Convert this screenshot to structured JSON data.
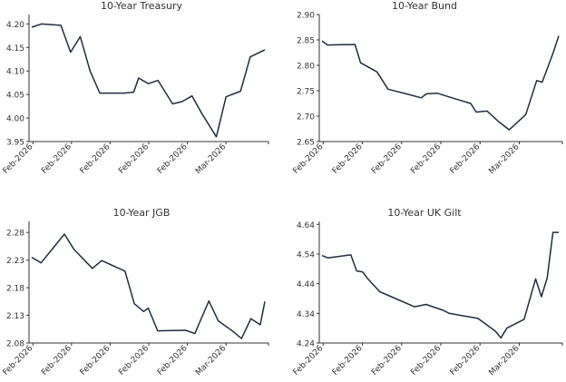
{
  "colors": {
    "line": "#1f2d3d",
    "axis": "#333333",
    "text": "#333333"
  },
  "chart_data": [
    {
      "type": "line",
      "title": "10-Year Treasury",
      "xlabel": "",
      "ylabel": "",
      "ylim": [
        3.95,
        4.22
      ],
      "yticks": [
        "4.20",
        "4.15",
        "4.10",
        "4.05",
        "4.00",
        "3.95"
      ],
      "xticks": [
        "Feb-2026",
        "Feb-2026",
        "Feb-2026",
        "Feb-2026",
        "Feb-2026",
        "Mar-2026"
      ],
      "grid": false,
      "series": [
        {
          "x": [
            0,
            2,
            6,
            8,
            10,
            12,
            14,
            19,
            21,
            22,
            24,
            26,
            29,
            31,
            33,
            35,
            38,
            40,
            43,
            45,
            48
          ],
          "values": [
            4.193,
            4.2,
            4.197,
            4.14,
            4.173,
            4.1,
            4.053,
            4.053,
            4.055,
            4.085,
            4.073,
            4.08,
            4.03,
            4.035,
            4.047,
            4.01,
            3.96,
            4.045,
            4.057,
            4.13,
            4.145
          ]
        }
      ]
    },
    {
      "type": "line",
      "title": "10-Year Bund",
      "xlabel": "",
      "ylabel": "",
      "ylim": [
        2.65,
        2.9
      ],
      "yticks": [
        "2.90",
        "2.85",
        "2.80",
        "2.75",
        "2.70",
        "2.65"
      ],
      "xticks": [
        "Feb-2026",
        "Feb-2026",
        "Feb-2026",
        "Feb-2026",
        "Feb-2026",
        "Mar-2026"
      ],
      "grid": false,
      "series": [
        {
          "x": [
            0,
            1,
            6,
            7,
            10,
            12,
            16,
            18,
            19,
            21,
            23,
            27,
            28,
            30,
            32,
            34,
            37,
            39,
            40,
            42,
            43
          ],
          "values": [
            2.848,
            2.84,
            2.841,
            2.805,
            2.787,
            2.753,
            2.742,
            2.736,
            2.744,
            2.745,
            2.738,
            2.725,
            2.708,
            2.71,
            2.69,
            2.673,
            2.703,
            2.77,
            2.767,
            2.825,
            2.858
          ]
        }
      ]
    },
    {
      "type": "line",
      "title": "10-Year JGB",
      "xlabel": "",
      "ylabel": "",
      "ylim": [
        2.08,
        2.3
      ],
      "yticks": [
        "2.28",
        "2.23",
        "2.18",
        "2.13",
        "2.08"
      ],
      "xticks": [
        "Feb-2026",
        "Feb-2026",
        "Feb-2026",
        "Feb-2026",
        "Feb-2026",
        "Mar-2026"
      ],
      "grid": false,
      "series": [
        {
          "x": [
            0,
            2,
            7,
            9,
            13,
            15,
            20,
            22,
            24,
            25,
            27,
            33,
            35,
            36,
            38,
            40,
            43,
            45,
            47,
            49,
            50
          ],
          "values": [
            2.235,
            2.225,
            2.277,
            2.25,
            2.215,
            2.229,
            2.21,
            2.151,
            2.137,
            2.143,
            2.102,
            2.103,
            2.097,
            2.117,
            2.156,
            2.12,
            2.102,
            2.088,
            2.124,
            2.113,
            2.155
          ]
        }
      ]
    },
    {
      "type": "line",
      "title": "10-Year UK Gilt",
      "xlabel": "",
      "ylabel": "",
      "ylim": [
        4.24,
        4.65
      ],
      "yticks": [
        "4.64",
        "4.54",
        "4.44",
        "4.34",
        "4.24"
      ],
      "xticks": [
        "Feb-2026",
        "Feb-2026",
        "Feb-2026",
        "Feb-2026",
        "Feb-2026",
        "Mar-2026"
      ],
      "grid": false,
      "series": [
        {
          "x": [
            0,
            1,
            5,
            6,
            7,
            8,
            10,
            12,
            16,
            18,
            21,
            22,
            27,
            30,
            31,
            32,
            35,
            37,
            38,
            39,
            40,
            41
          ],
          "values": [
            4.535,
            4.527,
            4.537,
            4.483,
            4.48,
            4.455,
            4.413,
            4.396,
            4.362,
            4.37,
            4.35,
            4.34,
            4.323,
            4.28,
            4.257,
            4.29,
            4.32,
            4.456,
            4.396,
            4.46,
            4.613,
            4.613
          ]
        }
      ]
    }
  ]
}
